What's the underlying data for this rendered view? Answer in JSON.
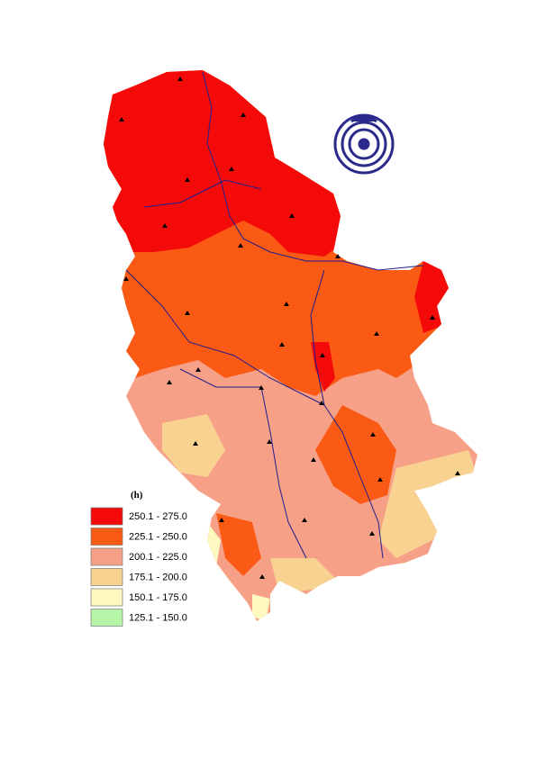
{
  "legend": {
    "title": "(h)",
    "items": [
      {
        "label": "250.1 - 275.0",
        "color": "#f50a0a"
      },
      {
        "label": "225.1 - 250.0",
        "color": "#fa5a14"
      },
      {
        "label": "200.1 - 225.0",
        "color": "#f7a088"
      },
      {
        "label": "175.1 - 200.0",
        "color": "#f8d290"
      },
      {
        "label": "150.1 - 175.0",
        "color": "#fcf8c0"
      },
      {
        "label": "125.1 - 150.0",
        "color": "#b4f5a8"
      }
    ]
  }
}
